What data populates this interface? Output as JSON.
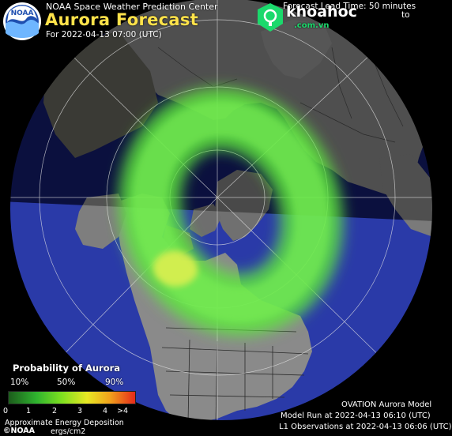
{
  "header": {
    "logo_text": "NOAA",
    "agency": "NOAA Space Weather Prediction Center",
    "title": "Aurora Forecast",
    "for_time": "For 2022-04-13 07:00 (UTC)",
    "lead_time": "Forecast Lead Time: 50 minutes",
    "lead_time_tail": "to"
  },
  "watermark": {
    "name": "khoahoc",
    "domain": ".com.vn",
    "color": "#1bd96c"
  },
  "legend": {
    "title": "Probability of Aurora",
    "percent_labels": [
      "10%",
      "50%",
      "90%"
    ],
    "tick_labels": [
      "0",
      "1",
      "2",
      "3",
      "4",
      ">4"
    ],
    "energy_label": "Approximate Energy Deposition",
    "energy_unit": "ergs/cm2"
  },
  "footer": {
    "noaa": "©NOAA",
    "model_name": "OVATION Aurora Model",
    "model_run": "Model Run at 2022-04-13 06:10 (UTC)",
    "l1_observations": "L1 Observations at 2022-04-13 06:06 (UTC)"
  },
  "colors": {
    "ocean_day": "#2a3aa8",
    "ocean_night": "#121a60",
    "land_day": "#7a7a7a",
    "land_night": "#3a3a34",
    "aurora_green": "#6ef04a",
    "aurora_yellow": "#f0f050",
    "title_yellow": "#ffe24a"
  },
  "map": {
    "projection": "north polar orthographic",
    "aurora_oval": "north",
    "day_night_terminator": true
  }
}
